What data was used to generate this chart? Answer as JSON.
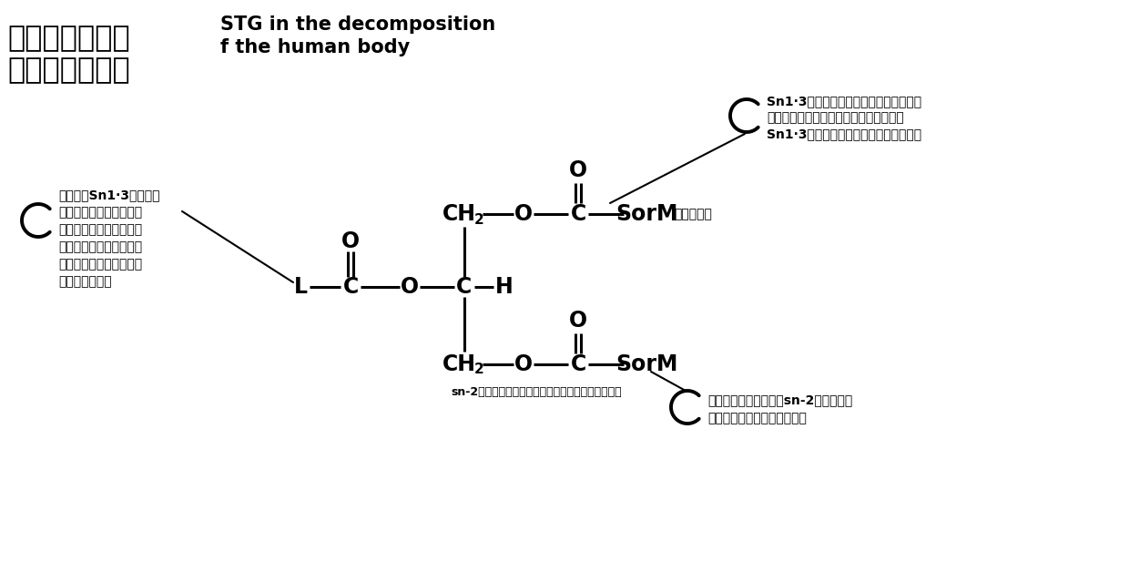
{
  "bg_color": "#ffffff",
  "title_zh_line1": "多不饱和脂肪酸",
  "title_zh_line2": "在人体中的分解",
  "title_en_line1": "STG in the decomposition",
  "title_en_line2": "f the human body",
  "sorM_label_top": "甘油三酯。",
  "ann_tr_line1": "Sn1·3位在舌脆酶、胃脆酶的作用，完全",
  "ann_tr_line2": "加水分解为脂肪酸和甘油，被迅速吸收，",
  "ann_tr_line3": "Sn1·3位水解生成的游离脂肪酸不再合成",
  "ann_left_line1": "大部分的Sn1·3位脂肪酸",
  "ann_left_line2": "以游离脂肪酸的形成与蒙",
  "ann_left_line3": "白结合，通过门静脉被输",
  "ann_left_line4": "送到肝脏，进入线粒而被",
  "ann_left_line5": "迅速氧化分解，满足人体",
  "ann_left_line6": "对蝋白的需要。",
  "ann_bot_center": "sn-2位为长硕链必需脂肪酸的结构，贴近肠管吸收。",
  "ann_br_line1": "可充分利用如图所示的sn-2位酰基甘油",
  "ann_br_line2": "来改善长硕链脂肪酸的吸收。"
}
